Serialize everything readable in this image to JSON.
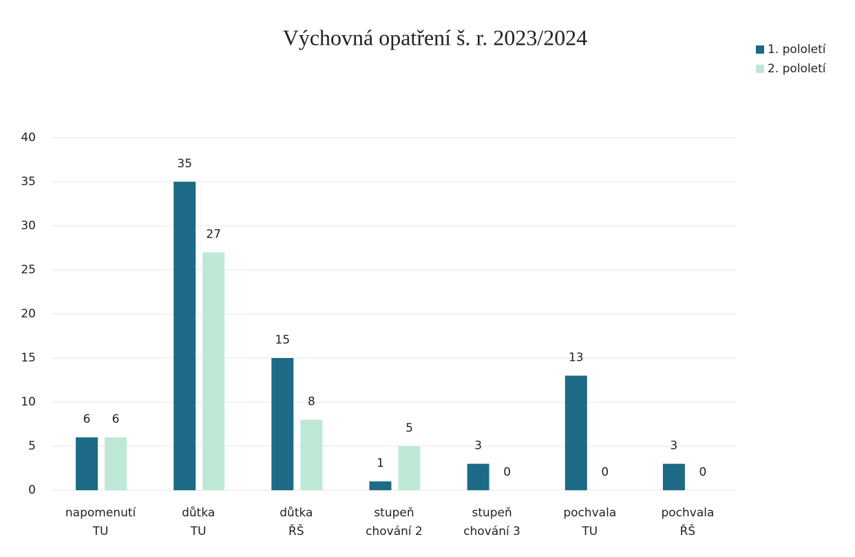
{
  "chart_data": {
    "type": "bar",
    "title": "Výchovná opatření š. r. 2023/2024",
    "categories": [
      [
        "napomenutí",
        "TU"
      ],
      [
        "důtka",
        "TU"
      ],
      [
        "důtka",
        "ŘŠ"
      ],
      [
        "stupeň",
        "chování 2"
      ],
      [
        "stupeň",
        "chování 3"
      ],
      [
        "pochvala",
        "TU"
      ],
      [
        "pochvala",
        "ŘŠ"
      ]
    ],
    "series": [
      {
        "name": "1. pololetí",
        "color": "#1d6b86",
        "values": [
          6,
          35,
          15,
          1,
          3,
          13,
          3
        ]
      },
      {
        "name": "2. pololetí",
        "color": "#bfe9d7",
        "values": [
          6,
          27,
          8,
          5,
          0,
          0,
          0
        ]
      }
    ],
    "ylim": [
      0,
      40
    ],
    "yticks": [
      0,
      5,
      10,
      15,
      20,
      25,
      30,
      35,
      40
    ],
    "grid": true,
    "legend": "top-right"
  }
}
